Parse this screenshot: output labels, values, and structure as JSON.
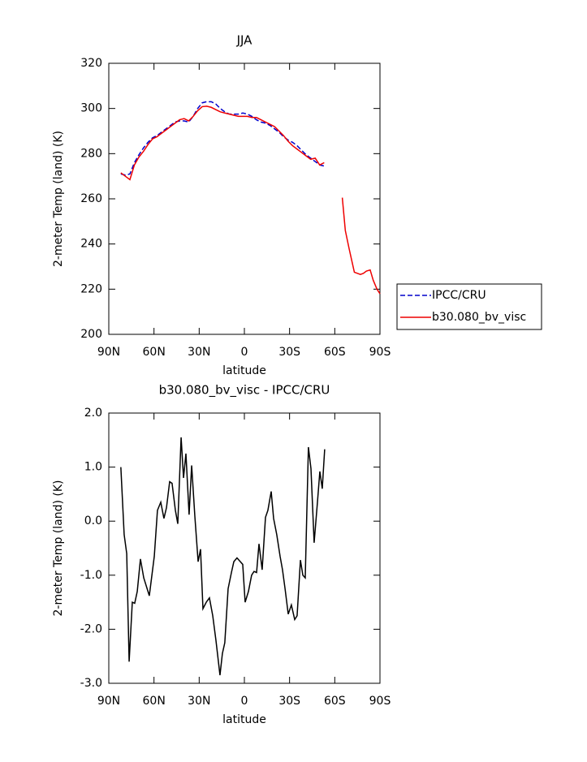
{
  "chart_data": [
    {
      "type": "line",
      "title": "JJA",
      "xlabel": "latitude",
      "ylabel": "2-meter Temp (land) (K)",
      "x": [
        82,
        79,
        76,
        73,
        70,
        67,
        64,
        61,
        58,
        55,
        52,
        49,
        46,
        43,
        40,
        37,
        34,
        31,
        28,
        25,
        22,
        19,
        16,
        13,
        10,
        7,
        4,
        1,
        -2,
        -5,
        -8,
        -11,
        -14,
        -17,
        -20,
        -23,
        -26,
        -29,
        -32,
        -35,
        -38,
        -41,
        -44,
        -47,
        -50,
        -53,
        -59,
        -65,
        -67,
        -69.5,
        -71.5,
        -73,
        -75,
        -77,
        -79,
        -81,
        -83.5,
        -85.5,
        -88,
        -90
      ],
      "series": [
        {
          "name": "IPCC/CRU",
          "color": "#0000cc",
          "dashed": true,
          "values": [
            271,
            270.5,
            271,
            276,
            279.5,
            282.5,
            285,
            287,
            288,
            289.5,
            291,
            292.5,
            294,
            294.5,
            294.5,
            294,
            296.5,
            300,
            302.5,
            303,
            303,
            302,
            300,
            298.5,
            297.5,
            297.5,
            297.5,
            298,
            297.5,
            296.5,
            295,
            294,
            293.5,
            292.5,
            291,
            289.5,
            287.5,
            286,
            285,
            283.5,
            281.5,
            279.5,
            278,
            276.5,
            275,
            274.5,
            null,
            null,
            null,
            null,
            null,
            null,
            null,
            null,
            null,
            null,
            null,
            null,
            null,
            null
          ]
        },
        {
          "name": "b30.080_bv_visc",
          "color": "#ee0000",
          "dashed": false,
          "values": [
            271.5,
            270,
            268.5,
            275,
            278.5,
            281,
            284,
            286.5,
            287.5,
            289,
            290.5,
            292,
            293.5,
            295,
            295.5,
            294.5,
            296.5,
            299,
            300.8,
            301,
            300.5,
            299.5,
            298.5,
            298,
            297.5,
            297,
            296.5,
            296.5,
            296.5,
            296,
            296,
            295,
            294,
            293,
            292,
            290,
            288,
            285.5,
            283.5,
            282,
            280.5,
            279,
            277.5,
            278,
            275,
            276,
            null,
            260.5,
            246,
            238,
            232,
            227.5,
            227,
            226.5,
            227,
            228,
            228.5,
            224,
            220,
            218
          ]
        }
      ],
      "xlim": [
        90,
        -90
      ],
      "xticks": [
        {
          "value": 90,
          "label": "90N"
        },
        {
          "value": 60,
          "label": "60N"
        },
        {
          "value": 30,
          "label": "30N"
        },
        0,
        {
          "value": -30,
          "label": "30S"
        },
        {
          "value": -60,
          "label": "60S"
        },
        {
          "value": -90,
          "label": "90S"
        }
      ],
      "ylim": [
        200,
        320
      ],
      "yticks": [
        200,
        220,
        240,
        260,
        280,
        300,
        320
      ],
      "legend": "right"
    },
    {
      "type": "line",
      "title": "b30.080_bv_visc - IPCC/CRU",
      "xlabel": "latitude",
      "ylabel": "2-meter Temp (land) (K)",
      "x": [
        82,
        79.8,
        78.1,
        76.5,
        74.4,
        72.8,
        71.1,
        69,
        66.8,
        63.1,
        59.8,
        57.7,
        55.5,
        53.4,
        51.7,
        49.6,
        48,
        45.8,
        44.2,
        42,
        40.4,
        38.8,
        36.7,
        35,
        32.9,
        30.7,
        29.1,
        27.5,
        25.3,
        23.2,
        21,
        18.9,
        16.2,
        14.6,
        13,
        10.8,
        8.6,
        7,
        4.9,
        2.7,
        1.1,
        -0.5,
        -2.7,
        -4.8,
        -6.4,
        -8.1,
        -9.7,
        -11.8,
        -14,
        -15.6,
        -17.8,
        -19.4,
        -21.5,
        -23.7,
        -25.3,
        -27,
        -29.1,
        -31.2,
        -33.4,
        -35,
        -37.2,
        -38.8,
        -40.4,
        -42.5,
        -44.2,
        -46.3,
        -48.5,
        -50.1,
        -51.7,
        -53.3
      ],
      "series": [
        {
          "color": "#000000",
          "values": [
            1.0,
            -0.25,
            -0.6,
            -2.6,
            -1.5,
            -1.52,
            -1.3,
            -0.7,
            -1.05,
            -1.38,
            -0.65,
            0.2,
            0.35,
            0.05,
            0.25,
            0.73,
            0.7,
            0.2,
            -0.05,
            1.55,
            0.8,
            1.25,
            0.12,
            1.03,
            0.1,
            -0.75,
            -0.52,
            -1.62,
            -1.5,
            -1.42,
            -1.75,
            -2.2,
            -2.85,
            -2.45,
            -2.25,
            -1.25,
            -0.95,
            -0.75,
            -0.68,
            -0.75,
            -0.8,
            -1.5,
            -1.3,
            -1.0,
            -0.93,
            -0.95,
            -0.42,
            -0.9,
            0.07,
            0.2,
            0.55,
            0.05,
            -0.25,
            -0.65,
            -0.9,
            -1.25,
            -1.72,
            -1.55,
            -1.82,
            -1.75,
            -0.72,
            -1.0,
            -1.05,
            1.37,
            0.97,
            -0.4,
            0.35,
            0.92,
            0.6,
            1.33
          ]
        }
      ],
      "xlim": [
        90,
        -90
      ],
      "xticks": [
        {
          "value": 90,
          "label": "90N"
        },
        {
          "value": 60,
          "label": "60N"
        },
        {
          "value": 30,
          "label": "30N"
        },
        0,
        {
          "value": -30,
          "label": "30S"
        },
        {
          "value": -60,
          "label": "60S"
        },
        {
          "value": -90,
          "label": "90S"
        }
      ],
      "ylim": [
        -3,
        2
      ],
      "yticks": [
        {
          "value": -3,
          "label": "-3.0"
        },
        {
          "value": -2,
          "label": "-2.0"
        },
        {
          "value": -1,
          "label": "-1.0"
        },
        {
          "value": 0,
          "label": "0.0"
        },
        {
          "value": 1,
          "label": "1.0"
        },
        {
          "value": 2,
          "label": "2.0"
        }
      ]
    }
  ]
}
